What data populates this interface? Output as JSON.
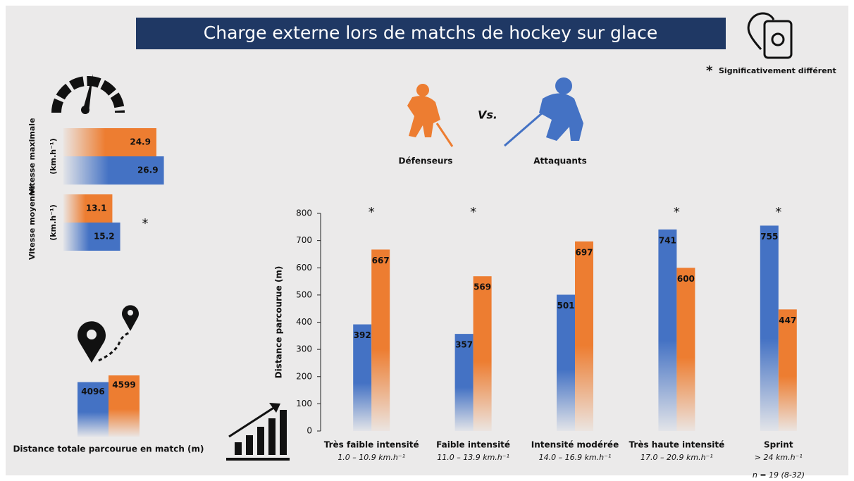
{
  "header": {
    "title": "Charge externe lors de matchs de hockey sur glace"
  },
  "legend": {
    "symbol": "*",
    "text": "Significativement différent",
    "versus": "Vs."
  },
  "footnote": "n = 19 (8-32)",
  "chart_data": [
    {
      "type": "hbar",
      "categories": [
        "Vitesse maximale",
        "Vitesse moyenne"
      ],
      "unit": "(km.h⁻¹)",
      "series": [
        {
          "color": "#ed7d31",
          "values": [
            24.9,
            13.1
          ]
        },
        {
          "color": "#4472c4",
          "values": [
            26.9,
            15.2
          ]
        }
      ],
      "significant": [
        false,
        true
      ]
    },
    {
      "type": "bar",
      "title": "Distance totale parcourue en match (m)",
      "series": [
        {
          "color": "#4472c4",
          "values": [
            4096
          ]
        },
        {
          "color": "#ed7d31",
          "values": [
            4599
          ]
        }
      ]
    },
    {
      "type": "bar",
      "ylabel": "Distance parcourue (m)",
      "categories": [
        "Très faible intensité",
        "Faible intensité",
        "Intensité modérée",
        "Très haute intensité",
        "Sprint"
      ],
      "subtitles": [
        "1.0 – 10.9 km.h⁻¹",
        "11.0 – 13.9 km.h⁻¹",
        "14.0 – 16.9 km.h⁻¹",
        "17.0 – 20.9 km.h⁻¹",
        "> 24 km.h⁻¹"
      ],
      "series": [
        {
          "name": "Attaquants",
          "color": "#4472c4",
          "values": [
            392,
            357,
            501,
            741,
            755
          ]
        },
        {
          "name": "Défenseurs",
          "color": "#ed7d31",
          "values": [
            667,
            569,
            697,
            600,
            447
          ]
        }
      ],
      "significant": [
        true,
        true,
        false,
        true,
        true
      ],
      "ylim": [
        0,
        800
      ],
      "yticks": [
        0,
        100,
        200,
        300,
        400,
        500,
        600,
        700,
        800
      ],
      "grid": false
    }
  ]
}
